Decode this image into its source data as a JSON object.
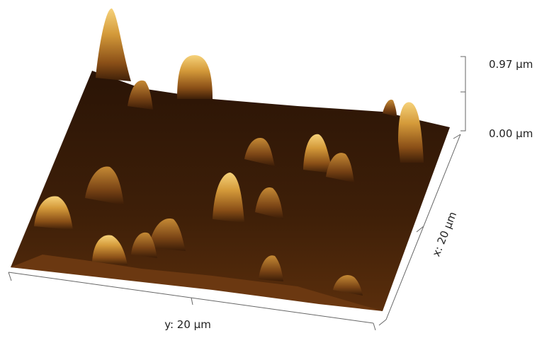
{
  "z_scale": {
    "max_label": "0.97 µm",
    "min_label": "0.00 µm"
  },
  "x_axis": {
    "label": "x: 20 µm"
  },
  "y_axis": {
    "label": "y: 20 µm"
  }
}
